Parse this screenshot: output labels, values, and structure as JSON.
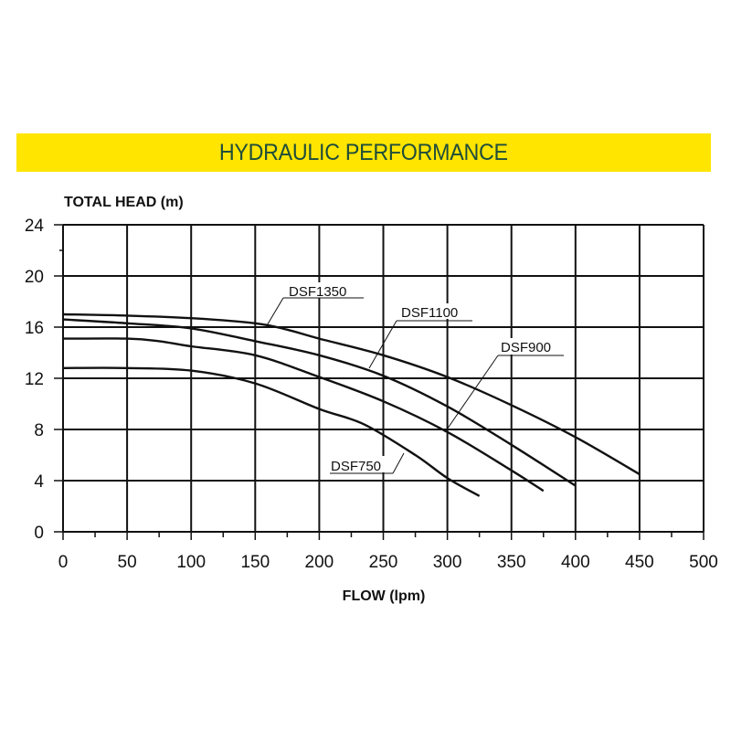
{
  "header": {
    "title": "HYDRAULIC PERFORMANCE",
    "banner_color": "#ffe500",
    "title_color": "#1f4d3a"
  },
  "chart_data": {
    "type": "line",
    "title": "HYDRAULIC PERFORMANCE",
    "xlabel": "FLOW (lpm)",
    "ylabel": "TOTAL HEAD (m)",
    "xlim": [
      0,
      500
    ],
    "ylim": [
      0,
      24
    ],
    "x_ticks": [
      0,
      50,
      100,
      150,
      200,
      250,
      300,
      350,
      400,
      450,
      500
    ],
    "y_ticks": [
      0,
      4,
      8,
      12,
      16,
      20,
      24
    ],
    "grid": true,
    "legend": "inline labels with leader lines",
    "series": [
      {
        "name": "DSF1350",
        "x": [
          0,
          50,
          100,
          150,
          175,
          200,
          250,
          300,
          350,
          400,
          450
        ],
        "values": [
          17.0,
          16.9,
          16.7,
          16.3,
          15.8,
          15.1,
          13.8,
          12.1,
          9.9,
          7.4,
          4.5
        ]
      },
      {
        "name": "DSF1100",
        "x": [
          0,
          50,
          100,
          150,
          200,
          250,
          300,
          350,
          400
        ],
        "values": [
          16.6,
          16.3,
          15.9,
          14.9,
          13.8,
          12.2,
          9.8,
          6.8,
          3.6
        ]
      },
      {
        "name": "DSF900",
        "x": [
          0,
          50,
          75,
          100,
          150,
          200,
          250,
          300,
          350,
          375
        ],
        "values": [
          15.1,
          15.1,
          14.9,
          14.5,
          13.8,
          12.1,
          10.2,
          7.8,
          4.8,
          3.2
        ]
      },
      {
        "name": "DSF750",
        "x": [
          0,
          50,
          100,
          150,
          200,
          235,
          275,
          300,
          325
        ],
        "values": [
          12.8,
          12.8,
          12.6,
          11.6,
          9.6,
          8.4,
          6.0,
          4.2,
          2.8
        ]
      }
    ],
    "annotations": [
      {
        "text": "DSF1350",
        "target_series": "DSF1350"
      },
      {
        "text": "DSF1100",
        "target_series": "DSF1100"
      },
      {
        "text": "DSF900",
        "target_series": "DSF900"
      },
      {
        "text": "DSF750",
        "target_series": "DSF750"
      }
    ]
  }
}
